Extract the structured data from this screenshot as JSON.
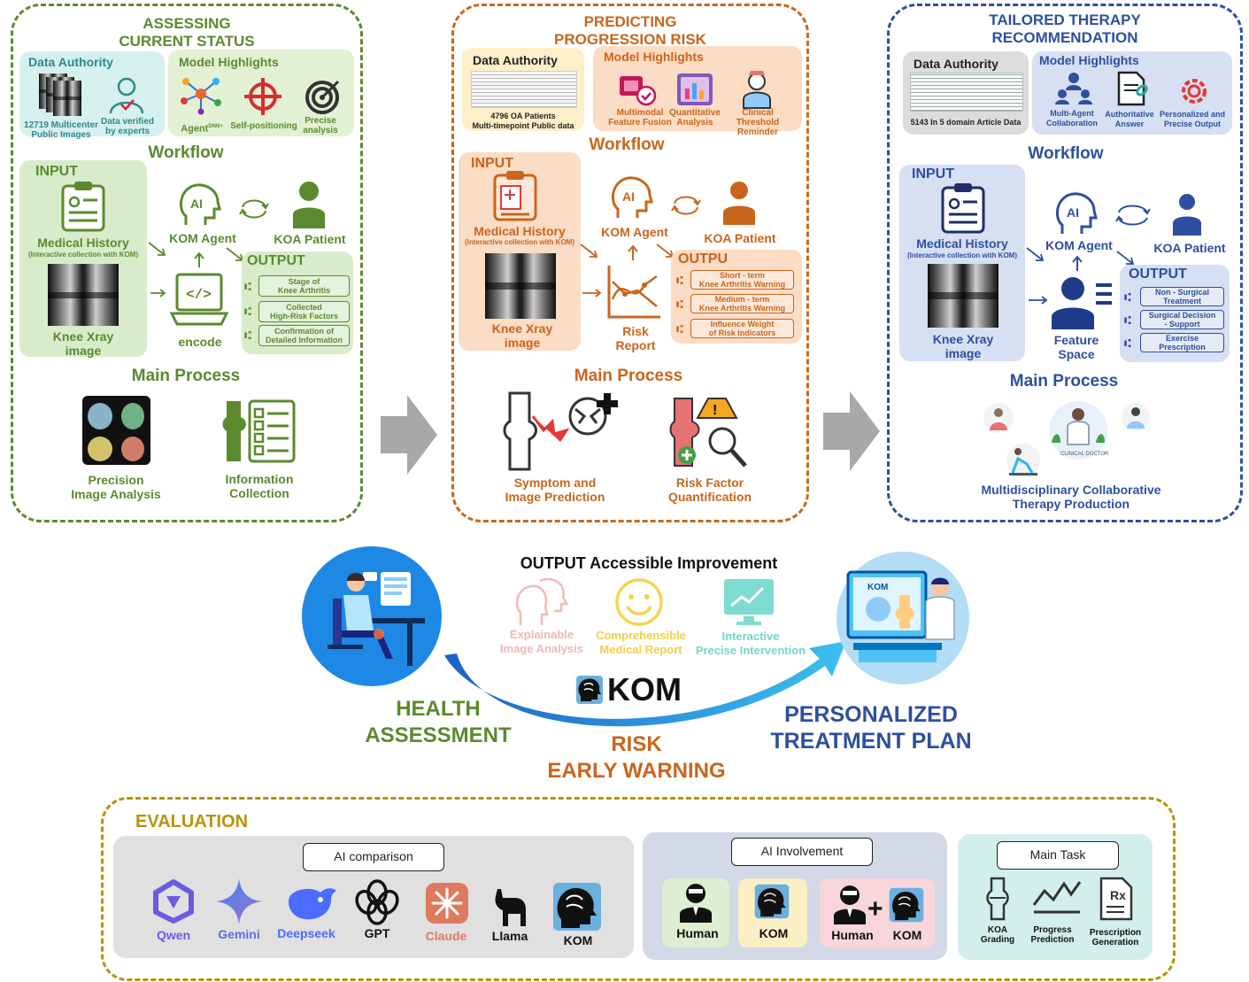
{
  "colors": {
    "green": "#5b8a2e",
    "orange": "#c9651c",
    "blue": "#2e4fa0",
    "gold": "#b8920c"
  },
  "panel1": {
    "title": "ASSESSING\nCURRENT STATUS",
    "data_authority": {
      "title": "Data Authority",
      "items": [
        "12719 Multicenter\nPublic Images",
        "Data verified\nby experts"
      ]
    },
    "model_highlights": {
      "title": "Model Highlights",
      "items": [
        "Agent",
        "Self-positioning",
        "Precise\nanalysis"
      ],
      "agent_sup": "DNN+"
    },
    "workflow": "Workflow",
    "input": "INPUT",
    "medical_history": "Medical History",
    "medical_history_sub": "(Interactive collection with KOM)",
    "xray": "Knee Xray\nimage",
    "agent": "KOM Agent",
    "patient": "KOA Patient",
    "encode": "encode",
    "output": "OUTPUT",
    "outputs": [
      "Stage of\nKnee Arthritis",
      "Collected\nHigh-Risk Factors",
      "Confirmation of\nDetailed Information"
    ],
    "main_process": "Main Process",
    "processes": [
      "Precision\nImage Analysis",
      "Information\nCollection"
    ]
  },
  "panel2": {
    "title": "PREDICTING\nPROGRESSION RISK",
    "data_authority": {
      "title": "Data Authority",
      "items": [
        "4796 OA Patients\nMulti-timepoint Public data"
      ]
    },
    "model_highlights": {
      "title": "Model Highlights",
      "items": [
        "Multimodal\nFeature Fusion",
        "Quantitative\nAnalysis",
        "Clinical\nThreshold Reminder"
      ]
    },
    "workflow": "Workflow",
    "input": "INPUT",
    "medical_history": "Medical History",
    "medical_history_sub": "(Interactive collection with KOM)",
    "xray": "Knee Xray\nimage",
    "agent": "KOM Agent",
    "patient": "KOA Patient",
    "risk_report": "Risk\nReport",
    "output": "OUTPU",
    "outputs": [
      "Short - term\nKnee Arthritis Warning",
      "Medium - term\nKnee Arthritis Warning",
      "Influence Weight\nof Risk Indicators"
    ],
    "main_process": "Main Process",
    "processes": [
      "Symptom and\nImage Prediction",
      "Risk Factor\nQuantification"
    ]
  },
  "panel3": {
    "title": "TAILORED THERAPY\nRECOMMENDATION",
    "data_authority": {
      "title": "Data Authority",
      "items": [
        "5143 In 5 domain Article Data"
      ]
    },
    "model_highlights": {
      "title": "Model Highlights",
      "items": [
        "Multi-Agent\nCollaboration",
        "Authoritative\nAnswer",
        "Personalized and\nPrecise Output"
      ]
    },
    "workflow": "Workflow",
    "input": "INPUT",
    "medical_history": "Medical History",
    "medical_history_sub": "(Interactive collection with KOM)",
    "xray": "Knee Xray\nimage",
    "agent": "KOM Agent",
    "patient": "KOA Patient",
    "feature_space": "Feature\nSpace",
    "output": "OUTPUT",
    "outputs": [
      "Non - Surgical\nTreatment",
      "Surgical Decision\n- Support",
      "Exercise\nPrescription"
    ],
    "main_process": "Main Process",
    "processes": [
      "Multidisciplinary Collaborative\nTherapy Production"
    ],
    "clinical_doctor": "CLINICAL DOCTOR"
  },
  "center": {
    "heading": "OUTPUT Accessible Improvement",
    "items": [
      "Explainable\nImage Analysis",
      "Comprehensible\nMedical Report",
      "Interactive\nPrecise Intervention"
    ],
    "kom": "KOM",
    "health": "HEALTH\nASSESSMENT",
    "risk": "RISK\nEARLY WARNING",
    "plan": "PERSONALIZED\nTREATMENT PLAN",
    "screen_kom": "KOM"
  },
  "evaluation": {
    "title": "EVALUATION",
    "ai_comparison": "AI comparison",
    "models": [
      "Qwen",
      "Gemini",
      "Deepseek",
      "GPT",
      "Claude",
      "Llama",
      "KOM"
    ],
    "ai_involvement": "AI Involvement",
    "involvement": [
      "Human",
      "KOM",
      "Human",
      "KOM"
    ],
    "main_task": "Main Task",
    "tasks": [
      "KOA\nGrading",
      "Progress\nPrediction",
      "Prescription\nGeneration"
    ]
  }
}
